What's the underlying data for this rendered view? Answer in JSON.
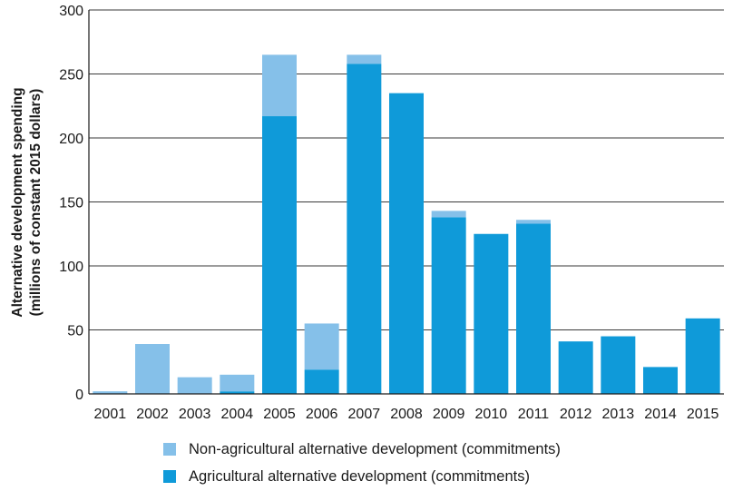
{
  "chart_data": {
    "type": "bar",
    "stacked": true,
    "categories": [
      "2001",
      "2002",
      "2003",
      "2004",
      "2005",
      "2006",
      "2007",
      "2008",
      "2009",
      "2010",
      "2011",
      "2012",
      "2013",
      "2014",
      "2015"
    ],
    "series": [
      {
        "name": "Agricultural alternative development (commitments)",
        "color": "#0f9ad9",
        "values": [
          0,
          0,
          0,
          2,
          217,
          19,
          258,
          235,
          138,
          125,
          133,
          41,
          45,
          21,
          59
        ]
      },
      {
        "name": "Non-agricultural alternative development (commitments)",
        "color": "#85c0e9",
        "values": [
          2,
          39,
          13,
          13,
          48,
          36,
          7,
          0,
          5,
          0,
          3,
          0,
          0,
          0,
          0
        ]
      }
    ],
    "ylabel": [
      "Alternative development spending",
      "(millions of constant 2015 dollars)"
    ],
    "ylim": [
      0,
      300
    ],
    "yticks": [
      0,
      50,
      100,
      150,
      200,
      250,
      300
    ],
    "grid": true,
    "legend_position": "bottom"
  }
}
